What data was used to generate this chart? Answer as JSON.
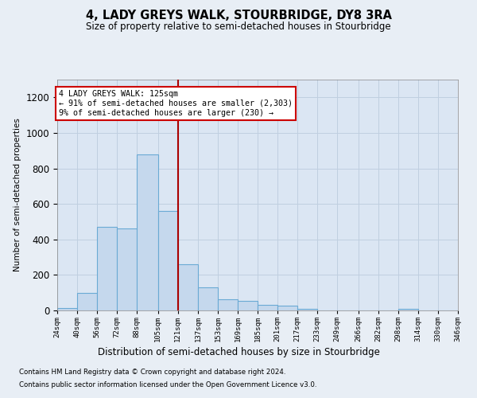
{
  "title": "4, LADY GREYS WALK, STOURBRIDGE, DY8 3RA",
  "subtitle": "Size of property relative to semi-detached houses in Stourbridge",
  "xlabel": "Distribution of semi-detached houses by size in Stourbridge",
  "ylabel": "Number of semi-detached properties",
  "footnote1": "Contains HM Land Registry data © Crown copyright and database right 2024.",
  "footnote2": "Contains public sector information licensed under the Open Government Licence v3.0.",
  "annotation_line1": "4 LADY GREYS WALK: 125sqm",
  "annotation_line2": "← 91% of semi-detached houses are smaller (2,303)",
  "annotation_line3": "9% of semi-detached houses are larger (230) →",
  "bar_color": "#c5d8ed",
  "bar_edge_color": "#6aaad4",
  "vline_color": "#aa0000",
  "vline_x": 121,
  "ylim": [
    0,
    1300
  ],
  "yticks": [
    0,
    200,
    400,
    600,
    800,
    1000,
    1200
  ],
  "bin_edges": [
    24,
    40,
    56,
    72,
    88,
    105,
    121,
    137,
    153,
    169,
    185,
    201,
    217,
    233,
    249,
    266,
    282,
    298,
    314,
    330,
    346
  ],
  "bin_labels": [
    "24sqm",
    "40sqm",
    "56sqm",
    "72sqm",
    "88sqm",
    "105sqm",
    "121sqm",
    "137sqm",
    "153sqm",
    "169sqm",
    "185sqm",
    "201sqm",
    "217sqm",
    "233sqm",
    "249sqm",
    "266sqm",
    "282sqm",
    "298sqm",
    "314sqm",
    "330sqm",
    "346sqm"
  ],
  "bar_heights": [
    15,
    100,
    470,
    460,
    880,
    560,
    260,
    130,
    65,
    55,
    30,
    25,
    10,
    0,
    0,
    0,
    0,
    10,
    0,
    0
  ],
  "background_color": "#e8eef5",
  "plot_bg_color": "#dbe6f3",
  "grid_color": "#c0cfe0"
}
